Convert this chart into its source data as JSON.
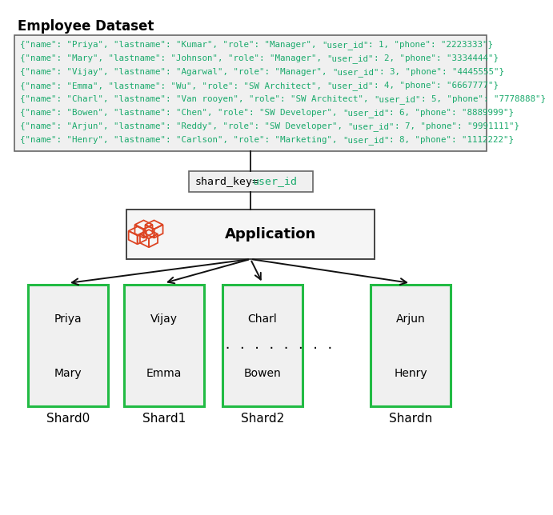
{
  "title": "Employee Dataset",
  "lines": [
    {
      "before": "{“name”: “Priya”, “lastname”: “Kumar”, “role”: “Manager”, ",
      "uid": "“user_id”: 1,",
      "after": " “phone”: “2223333”}"
    },
    {
      "before": "{“name”: “Mary”, “lastname”: “Johnson”, “role”: “Manager”, ",
      "uid": "“user_id”: 2,",
      "after": " “phone”: “3334444”}"
    },
    {
      "before": "{“name”: “Vijay”, “lastname”: “Agarwal”, “role”: “Manager”,",
      "uid": "“user_id”: 3,",
      "after": " “phone”: “4445555”}"
    },
    {
      "before": "{“name”: “Emma”, “lastname”: “Wu”, “role”: “SW Architect”,",
      "uid": "“user_id”: 4,",
      "after": " “phone”: “6667777”}"
    },
    {
      "before": "{“name”: “Charl”, “lastname”: “Van rooyen”, “role”: “SW Architect”, ",
      "uid": "“user_id”: 5,",
      "after": " “phone”: “7778888”}"
    },
    {
      "before": "{“name”: “Bowen”, “lastname”: “Chen”, “role”: “SW Developer”, ",
      "uid": "“user_id”: 6,",
      "after": " “phone”: “8889999”}"
    },
    {
      "before": "{“name”: “Arjun”, “lastname”: “Reddy”, “role”: “SW Developer”, ",
      "uid": "“user_id”: 7,",
      "after": " “phone”: “9991111”}"
    },
    {
      "before": "{“name”: “Henry”, “lastname”: “Carlson”, “role”: “Marketing”, ",
      "uid": "“user_id”: 8,",
      "after": " “phone”: “1112222”}"
    }
  ],
  "lines_plain": [
    "{\"name\": \"Priya\", \"lastname\": \"Kumar\", \"role\": \"Manager\", \"user_id\": 1, \"phone\": \"2223333\"}",
    "{\"name\": \"Mary\", \"lastname\": \"Johnson\", \"role\": \"Manager\", \"user_id\": 2, \"phone\": \"3334444\"}",
    "{\"name\": \"Vijay\", \"lastname\": \"Agarwal\", \"role\": \"Manager\", \"user_id\": 3, \"phone\": \"4445555\"}",
    "{\"name\": \"Emma\", \"lastname\": \"Wu\", \"role\": \"SW Architect\", \"user_id\": 4, \"phone\": \"6667777\"}",
    "{\"name\": \"Charl\", \"lastname\": \"Van rooyen\", \"role\": \"SW Architect\", \"user_id\": 5, \"phone\": \"7778888\"}",
    "{\"name\": \"Bowen\", \"lastname\": \"Chen\", \"role\": \"SW Developer\", \"user_id\": 6, \"phone\": \"8889999\"}",
    "{\"name\": \"Arjun\", \"lastname\": \"Reddy\", \"role\": \"SW Developer\", \"user_id\": 7, \"phone\": \"9991111\"}",
    "{\"name\": \"Henry\", \"lastname\": \"Carlson\", \"role\": \"Marketing\", \"user_id\": 8, \"phone\": \"1112222\"}"
  ],
  "uid_marker": "\"user_id\"",
  "app_label": "Application",
  "shards": [
    {
      "label": "Shard0",
      "names": [
        "Priya",
        "Mary"
      ],
      "dots": false
    },
    {
      "label": "Shard1",
      "names": [
        "Vijay",
        "Emma"
      ],
      "dots": false
    },
    {
      "label": "Shard2",
      "names": [
        "Charl",
        "Bowen"
      ],
      "dots": true
    },
    {
      "label": "Shardn",
      "names": [
        "Arjun",
        "Henry"
      ],
      "dots": false
    }
  ],
  "bg_color": "#ffffff",
  "dataset_box_bg": "#f0f0f0",
  "dataset_box_border": "#666666",
  "sk_box_bg": "#f0f0f0",
  "sk_box_border": "#666666",
  "app_box_bg": "#f5f5f5",
  "app_box_border": "#444444",
  "shard_box_bg": "#f0f0f0",
  "shard_box_border": "#22bb44",
  "arrow_color": "#111111",
  "text_black": "#000000",
  "text_green": "#1aaa6c",
  "icon_color": "#dd4422",
  "title_fs": 12,
  "data_fs": 7.8,
  "sk_fs": 9.5,
  "app_fs": 13,
  "shard_name_fs": 10,
  "shard_label_fs": 11,
  "dots_fs": 11
}
